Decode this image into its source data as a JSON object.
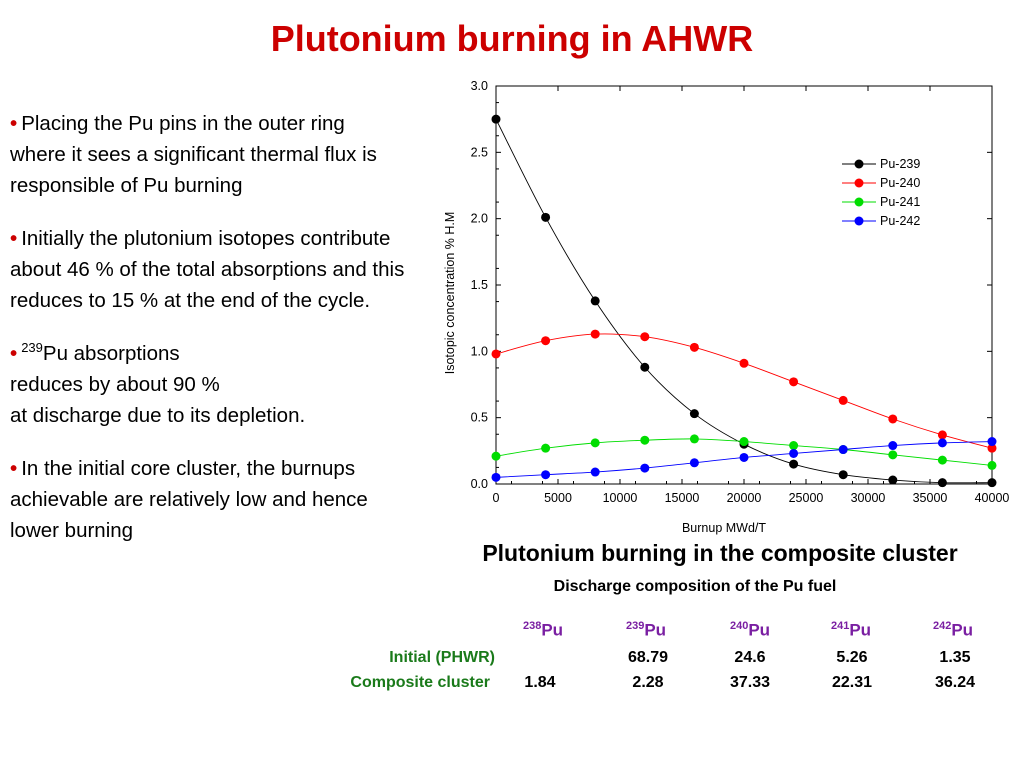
{
  "title": "Plutonium burning in AHWR",
  "bullets": [
    {
      "text": "Placing the Pu pins in the outer ring where it sees a significant thermal flux is responsible of Pu burning"
    },
    {
      "text": "Initially  the plutonium isotopes contribute about 46 % of the total absorptions and this reduces to 15 % at the end of the cycle."
    },
    {
      "sup": "239",
      "text_a": "Pu absorptions",
      "text_b": "reduces by about 90 %",
      "text_c": "at discharge due to its depletion."
    },
    {
      "text": "In the initial core cluster, the burnups achievable are relatively low and hence lower burning"
    }
  ],
  "chart_data": {
    "type": "line",
    "xlabel": "Burnup   MWd/T",
    "ylabel": "Isotopic concentration   % H.M",
    "xlim": [
      0,
      40000
    ],
    "ylim": [
      0,
      3.0
    ],
    "xticks": [
      "0",
      "5000",
      "10000",
      "15000",
      "20000",
      "25000",
      "30000",
      "35000",
      "40000"
    ],
    "yticks": [
      "0.0",
      "0.5",
      "1.0",
      "1.5",
      "2.0",
      "2.5",
      "3.0"
    ],
    "legend_position": "top-right",
    "x": [
      0,
      4000,
      8000,
      12000,
      16000,
      20000,
      24000,
      28000,
      32000,
      36000,
      40000
    ],
    "series": [
      {
        "name": "Pu-239",
        "color": "#000000",
        "values": [
          2.75,
          2.01,
          1.38,
          0.88,
          0.53,
          0.3,
          0.15,
          0.07,
          0.03,
          0.01,
          0.01
        ]
      },
      {
        "name": "Pu-240",
        "color": "#ff0000",
        "values": [
          0.98,
          1.08,
          1.13,
          1.11,
          1.03,
          0.91,
          0.77,
          0.63,
          0.49,
          0.37,
          0.27
        ]
      },
      {
        "name": "Pu-241",
        "color": "#00dd00",
        "values": [
          0.21,
          0.27,
          0.31,
          0.33,
          0.34,
          0.32,
          0.29,
          0.26,
          0.22,
          0.18,
          0.14
        ]
      },
      {
        "name": "Pu-242",
        "color": "#0000ff",
        "values": [
          0.05,
          0.07,
          0.09,
          0.12,
          0.16,
          0.2,
          0.23,
          0.26,
          0.29,
          0.31,
          0.32
        ]
      }
    ]
  },
  "subtitle": "Plutonium burning in the composite cluster",
  "table": {
    "caption": "Discharge composition of the Pu fuel",
    "headers": [
      {
        "sup": "238",
        "base": "Pu"
      },
      {
        "sup": "239",
        "base": "Pu"
      },
      {
        "sup": "240",
        "base": "Pu"
      },
      {
        "sup": "241",
        "base": "Pu"
      },
      {
        "sup": "242",
        "base": "Pu"
      }
    ],
    "rows": [
      {
        "label": "Initial (PHWR)",
        "values": [
          "",
          "68.79",
          "24.6",
          "5.26",
          "1.35"
        ]
      },
      {
        "label": "Composite cluster",
        "values": [
          "1.84",
          "2.28",
          "37.33",
          "22.31",
          "36.24"
        ]
      }
    ]
  }
}
